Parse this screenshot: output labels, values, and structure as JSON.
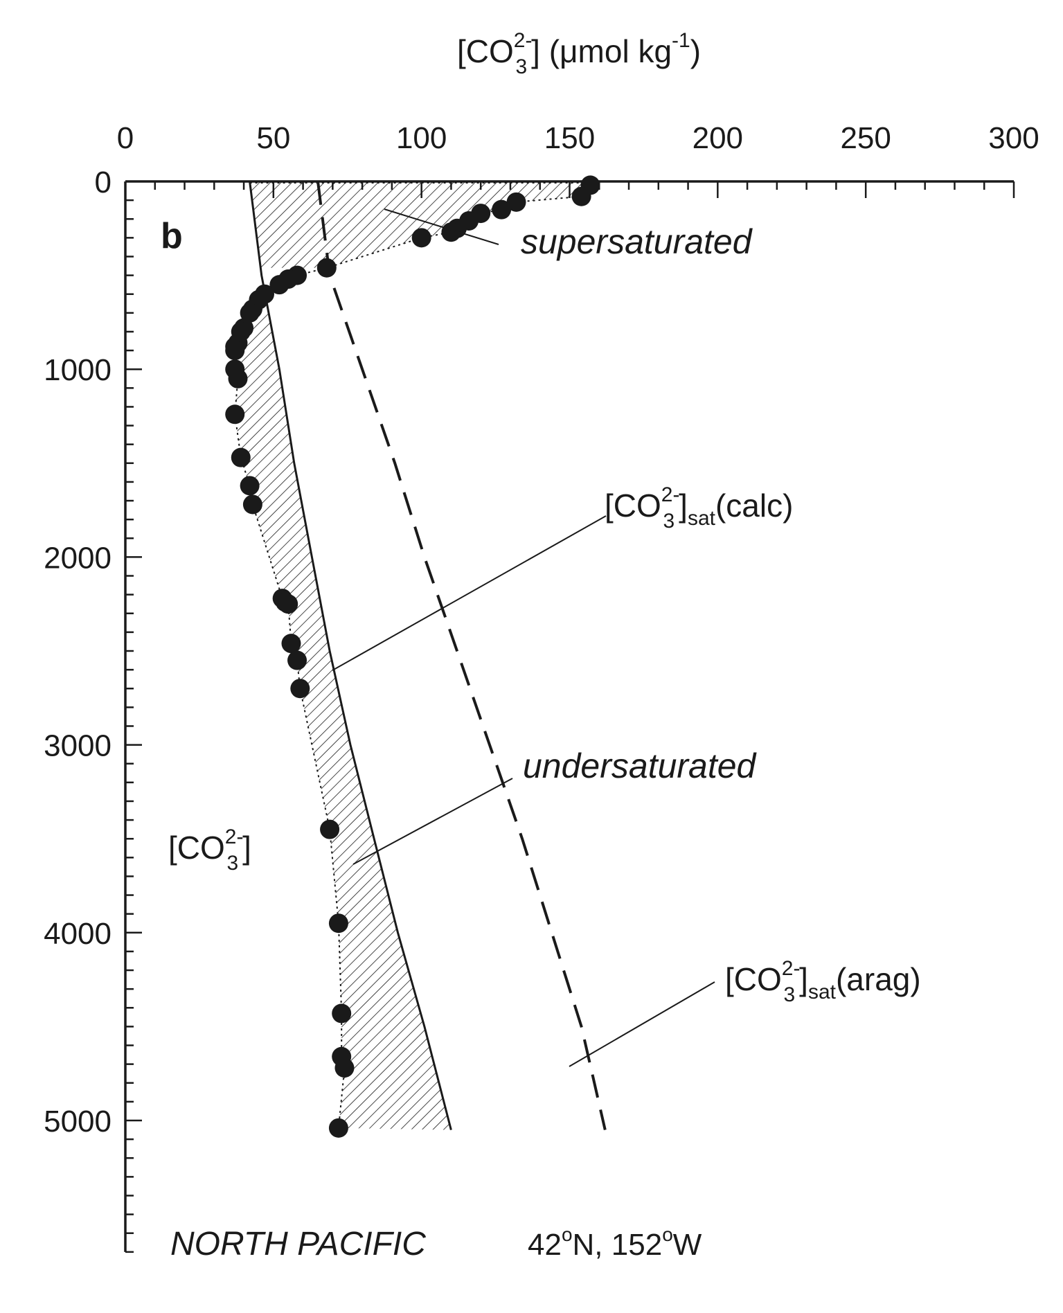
{
  "chart_data": {
    "type": "scatter",
    "panel_label": "b",
    "xlabel": {
      "main": "[CO",
      "sub": "3",
      "sup": "2-",
      "rest": "] (μmol kg",
      "rest_sup": "-1",
      "close": ")"
    },
    "x_axis": {
      "position": "top",
      "range": [
        0,
        300
      ],
      "ticks": [
        0,
        50,
        100,
        150,
        200,
        250,
        300
      ],
      "tick_labels": [
        "0",
        "50",
        "100",
        "150",
        "200",
        "250",
        "300"
      ]
    },
    "y_axis": {
      "inverted": true,
      "range": [
        0,
        5700
      ],
      "ticks": [
        0,
        1000,
        2000,
        3000,
        4000,
        5000
      ],
      "tick_labels": [
        "0",
        "1000",
        "2000",
        "3000",
        "4000",
        "5000"
      ]
    },
    "grid": false,
    "series": [
      {
        "name_parts": {
          "main": "[CO",
          "sub": "3",
          "sup": "2-",
          "close": "]"
        },
        "kind": "points-dotted-line",
        "points": [
          [
            157,
            20
          ],
          [
            154,
            80
          ],
          [
            132,
            110
          ],
          [
            127,
            150
          ],
          [
            120,
            170
          ],
          [
            116,
            210
          ],
          [
            112,
            250
          ],
          [
            110,
            270
          ],
          [
            100,
            300
          ],
          [
            68,
            460
          ],
          [
            58,
            500
          ],
          [
            55,
            520
          ],
          [
            52,
            550
          ],
          [
            47,
            600
          ],
          [
            45,
            630
          ],
          [
            43,
            680
          ],
          [
            42,
            700
          ],
          [
            40,
            780
          ],
          [
            39,
            800
          ],
          [
            38,
            860
          ],
          [
            37,
            880
          ],
          [
            37,
            900
          ],
          [
            37,
            1000
          ],
          [
            38,
            1050
          ],
          [
            37,
            1240
          ],
          [
            39,
            1470
          ],
          [
            42,
            1620
          ],
          [
            43,
            1720
          ],
          [
            53,
            2220
          ],
          [
            54,
            2240
          ],
          [
            55,
            2250
          ],
          [
            56,
            2460
          ],
          [
            58,
            2550
          ],
          [
            59,
            2700
          ],
          [
            69,
            3450
          ],
          [
            72,
            3950
          ],
          [
            73,
            4430
          ],
          [
            73,
            4660
          ],
          [
            74,
            4720
          ],
          [
            72,
            5040
          ]
        ]
      },
      {
        "name_parts": {
          "main": "[CO",
          "sub": "3",
          "sup": "2-",
          "close": "]",
          "subtxt": "sat",
          "suffix": "(calc)"
        },
        "kind": "solid-line",
        "points": [
          [
            42,
            0
          ],
          [
            46,
            500
          ],
          [
            52,
            1000
          ],
          [
            57,
            1500
          ],
          [
            63,
            2000
          ],
          [
            69,
            2500
          ],
          [
            76,
            3000
          ],
          [
            84,
            3500
          ],
          [
            92,
            4000
          ],
          [
            101,
            4500
          ],
          [
            110,
            5050
          ]
        ]
      },
      {
        "name_parts": {
          "main": "[CO",
          "sub": "3",
          "sup": "2-",
          "close": "]",
          "subtxt": "sat",
          "suffix": "(arag)"
        },
        "kind": "dashed-line",
        "points": [
          [
            65,
            0
          ],
          [
            69,
            500
          ],
          [
            80,
            1000
          ],
          [
            91,
            1500
          ],
          [
            101,
            2000
          ],
          [
            112,
            2500
          ],
          [
            123,
            3000
          ],
          [
            134,
            3500
          ],
          [
            144,
            4000
          ],
          [
            154,
            4500
          ],
          [
            162,
            5050
          ]
        ]
      }
    ],
    "annotations": {
      "supersaturated": "supersaturated",
      "undersaturated": "undersaturated",
      "region": "NORTH PACIFIC",
      "location": {
        "lat": "42",
        "lat_dir": "N, ",
        "lon": "152",
        "lon_dir": "W",
        "deg": "o"
      }
    }
  }
}
